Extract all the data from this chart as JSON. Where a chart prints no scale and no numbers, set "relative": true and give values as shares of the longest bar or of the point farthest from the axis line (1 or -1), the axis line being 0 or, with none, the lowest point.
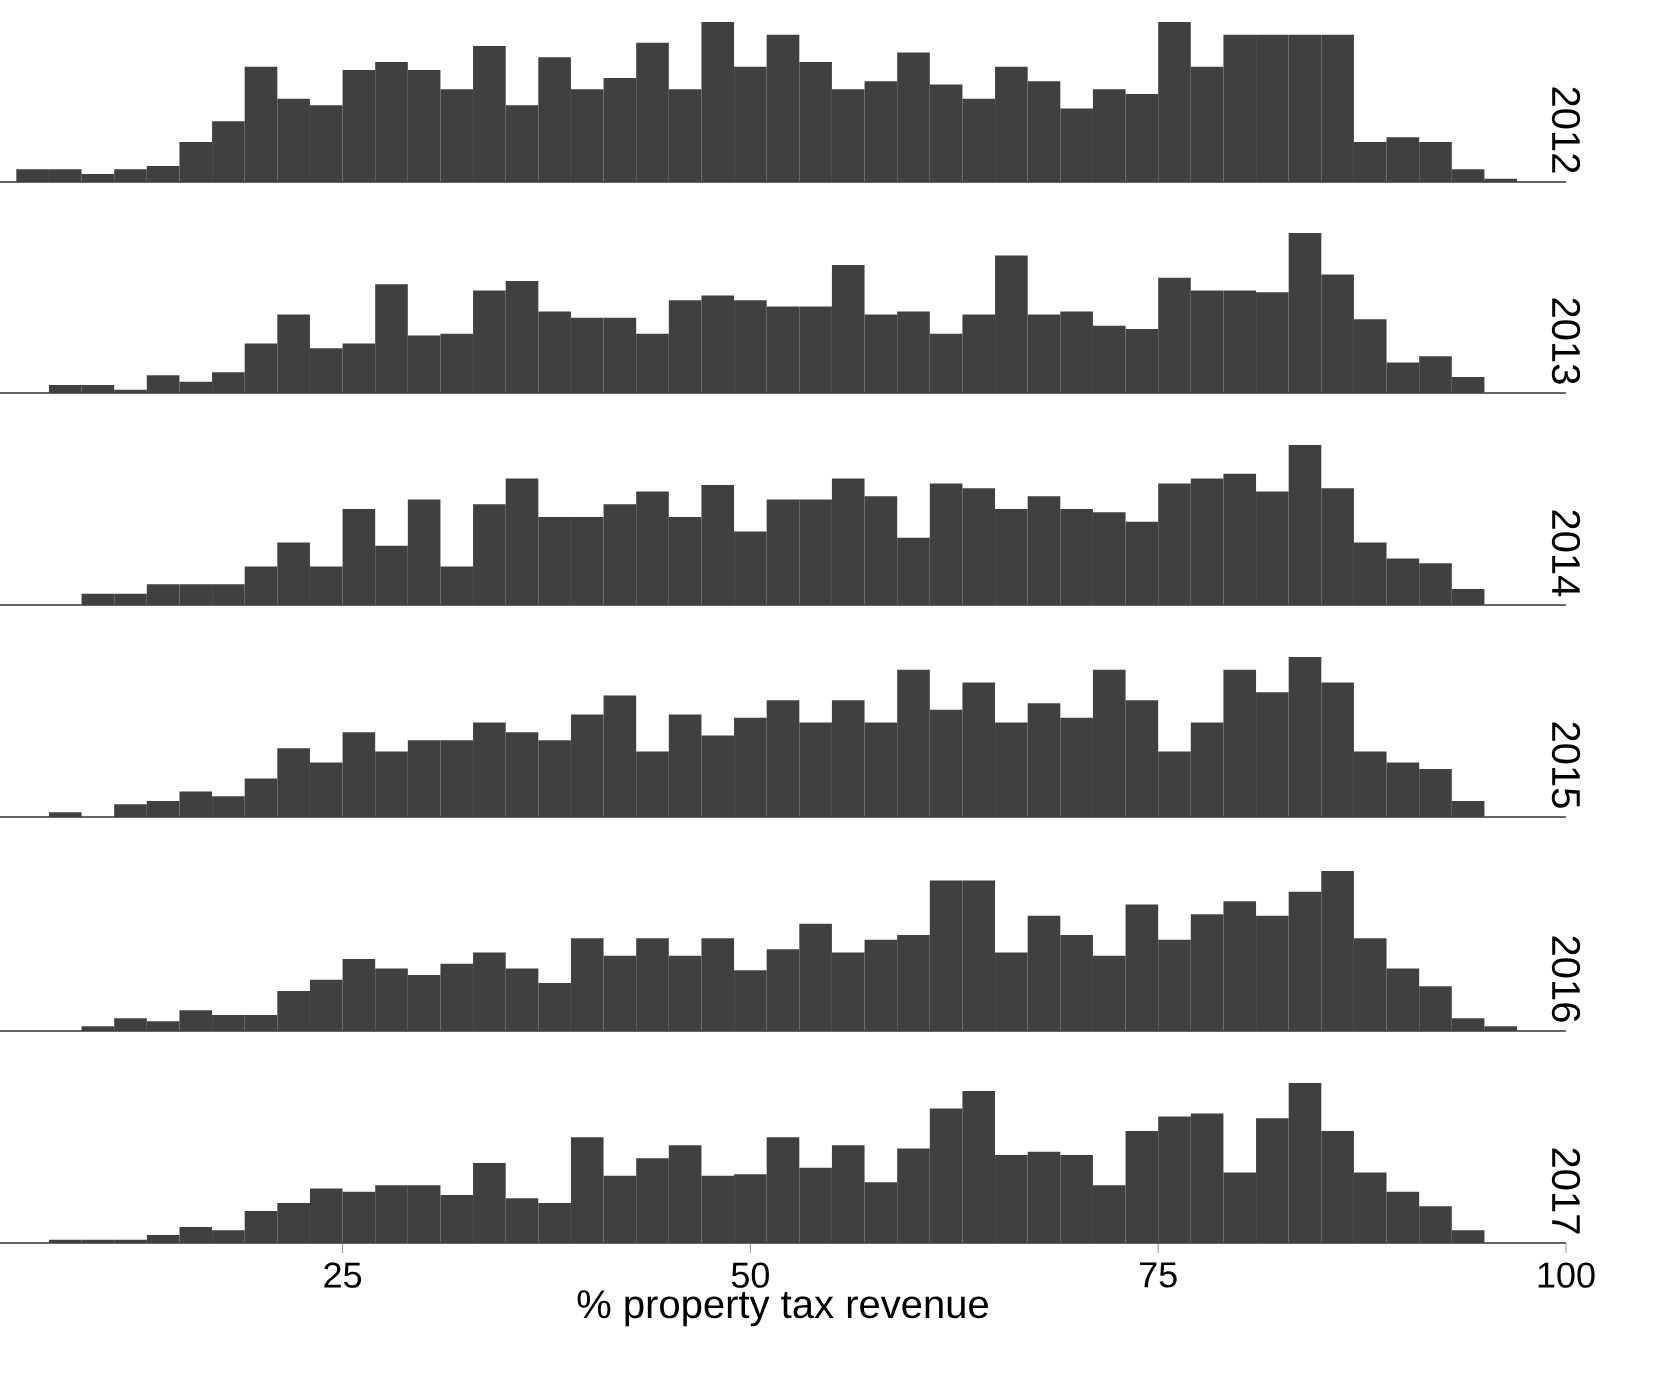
{
  "chart_data": [
    {
      "type": "bar",
      "title": "2012",
      "relative": true,
      "color": "#404040",
      "xlim": [
        4,
        100
      ],
      "tick_labels": false,
      "x": [
        6,
        8,
        10,
        12,
        14,
        16,
        18,
        20,
        22,
        24,
        26,
        28,
        30,
        32,
        34,
        36,
        38,
        40,
        42,
        44,
        46,
        48,
        50,
        52,
        54,
        56,
        58,
        60,
        62,
        64,
        66,
        68,
        70,
        72,
        74,
        76,
        78,
        80,
        82,
        84,
        86,
        88,
        90,
        92,
        94,
        96
      ],
      "values": [
        0.08,
        0.08,
        0.05,
        0.08,
        0.1,
        0.25,
        0.38,
        0.72,
        0.52,
        0.48,
        0.7,
        0.75,
        0.7,
        0.58,
        0.85,
        0.48,
        0.78,
        0.58,
        0.65,
        0.87,
        0.58,
        1,
        0.72,
        0.92,
        0.75,
        0.58,
        0.63,
        0.81,
        0.61,
        0.52,
        0.72,
        0.63,
        0.46,
        0.58,
        0.55,
        1,
        0.72,
        0.92,
        0.92,
        0.92,
        0.92,
        0.25,
        0.28,
        0.25,
        0.08,
        0.02
      ]
    },
    {
      "type": "bar",
      "title": "2013",
      "relative": true,
      "color": "#404040",
      "xlim": [
        4,
        100
      ],
      "tick_labels": false,
      "x": [
        8,
        10,
        12,
        14,
        16,
        18,
        20,
        22,
        24,
        26,
        28,
        30,
        32,
        34,
        36,
        38,
        40,
        42,
        44,
        46,
        48,
        50,
        52,
        54,
        56,
        58,
        60,
        62,
        64,
        66,
        68,
        70,
        72,
        74,
        76,
        78,
        80,
        82,
        84,
        86,
        88,
        90,
        92,
        94
      ],
      "values": [
        0.05,
        0.05,
        0.02,
        0.11,
        0.07,
        0.13,
        0.31,
        0.49,
        0.28,
        0.31,
        0.68,
        0.36,
        0.37,
        0.64,
        0.7,
        0.51,
        0.47,
        0.47,
        0.37,
        0.58,
        0.61,
        0.58,
        0.54,
        0.54,
        0.8,
        0.49,
        0.51,
        0.37,
        0.49,
        0.86,
        0.49,
        0.51,
        0.42,
        0.4,
        0.72,
        0.64,
        0.64,
        0.63,
        1,
        0.74,
        0.46,
        0.19,
        0.23,
        0.1
      ]
    },
    {
      "type": "bar",
      "title": "2014",
      "relative": true,
      "color": "#404040",
      "xlim": [
        4,
        100
      ],
      "tick_labels": false,
      "x": [
        10,
        12,
        14,
        16,
        18,
        20,
        22,
        24,
        26,
        28,
        30,
        32,
        34,
        36,
        38,
        40,
        42,
        44,
        46,
        48,
        50,
        52,
        54,
        56,
        58,
        60,
        62,
        64,
        66,
        68,
        70,
        72,
        74,
        76,
        78,
        80,
        82,
        84,
        86,
        88,
        90,
        92,
        94
      ],
      "values": [
        0.07,
        0.07,
        0.13,
        0.13,
        0.13,
        0.24,
        0.39,
        0.24,
        0.6,
        0.37,
        0.66,
        0.24,
        0.63,
        0.79,
        0.55,
        0.55,
        0.63,
        0.71,
        0.55,
        0.75,
        0.46,
        0.66,
        0.66,
        0.79,
        0.68,
        0.42,
        0.76,
        0.73,
        0.6,
        0.68,
        0.6,
        0.58,
        0.52,
        0.76,
        0.79,
        0.82,
        0.71,
        1,
        0.73,
        0.39,
        0.29,
        0.26,
        0.1
      ]
    },
    {
      "type": "bar",
      "title": "2015",
      "relative": true,
      "color": "#404040",
      "xlim": [
        4,
        100
      ],
      "tick_labels": false,
      "x": [
        8,
        12,
        14,
        16,
        18,
        20,
        22,
        24,
        26,
        28,
        30,
        32,
        34,
        36,
        38,
        40,
        42,
        44,
        46,
        48,
        50,
        52,
        54,
        56,
        58,
        60,
        62,
        64,
        66,
        68,
        70,
        72,
        74,
        76,
        78,
        80,
        82,
        84,
        86,
        88,
        90,
        92,
        94
      ],
      "values": [
        0.03,
        0.08,
        0.1,
        0.16,
        0.13,
        0.24,
        0.43,
        0.34,
        0.53,
        0.41,
        0.48,
        0.48,
        0.59,
        0.53,
        0.48,
        0.64,
        0.76,
        0.41,
        0.64,
        0.51,
        0.62,
        0.73,
        0.59,
        0.73,
        0.59,
        0.92,
        0.67,
        0.84,
        0.59,
        0.71,
        0.62,
        0.92,
        0.73,
        0.41,
        0.59,
        0.92,
        0.78,
        1,
        0.84,
        0.41,
        0.34,
        0.3,
        0.1
      ]
    },
    {
      "type": "bar",
      "title": "2016",
      "relative": true,
      "color": "#404040",
      "xlim": [
        4,
        100
      ],
      "tick_labels": false,
      "x": [
        10,
        12,
        14,
        16,
        18,
        20,
        22,
        24,
        26,
        28,
        30,
        32,
        34,
        36,
        38,
        40,
        42,
        44,
        46,
        48,
        50,
        52,
        54,
        56,
        58,
        60,
        62,
        64,
        66,
        68,
        70,
        72,
        74,
        76,
        78,
        80,
        82,
        84,
        86,
        88,
        90,
        92,
        94,
        96
      ],
      "values": [
        0.03,
        0.08,
        0.06,
        0.13,
        0.1,
        0.1,
        0.25,
        0.32,
        0.45,
        0.39,
        0.35,
        0.42,
        0.49,
        0.39,
        0.3,
        0.58,
        0.47,
        0.58,
        0.47,
        0.58,
        0.38,
        0.51,
        0.67,
        0.49,
        0.57,
        0.6,
        0.94,
        0.94,
        0.49,
        0.72,
        0.6,
        0.47,
        0.79,
        0.57,
        0.73,
        0.81,
        0.72,
        0.87,
        1,
        0.58,
        0.39,
        0.28,
        0.08,
        0.03
      ]
    },
    {
      "type": "bar",
      "title": "2017",
      "relative": true,
      "color": "#404040",
      "xlim": [
        4,
        100
      ],
      "xticks": [
        25,
        50,
        75,
        100
      ],
      "tick_labels": "x",
      "xlabel": "% property tax revenue",
      "x": [
        8,
        10,
        12,
        14,
        16,
        18,
        20,
        22,
        24,
        26,
        28,
        30,
        32,
        34,
        36,
        38,
        40,
        42,
        44,
        46,
        48,
        50,
        52,
        54,
        56,
        58,
        60,
        62,
        64,
        66,
        68,
        70,
        72,
        74,
        76,
        78,
        80,
        82,
        84,
        86,
        88,
        90,
        92,
        94
      ],
      "values": [
        0.02,
        0.02,
        0.02,
        0.05,
        0.1,
        0.08,
        0.2,
        0.25,
        0.34,
        0.32,
        0.36,
        0.36,
        0.3,
        0.5,
        0.28,
        0.25,
        0.66,
        0.42,
        0.53,
        0.61,
        0.42,
        0.43,
        0.66,
        0.47,
        0.61,
        0.38,
        0.59,
        0.84,
        0.95,
        0.55,
        0.57,
        0.55,
        0.36,
        0.7,
        0.79,
        0.81,
        0.44,
        0.78,
        1,
        0.7,
        0.44,
        0.32,
        0.23,
        0.08
      ]
    }
  ]
}
